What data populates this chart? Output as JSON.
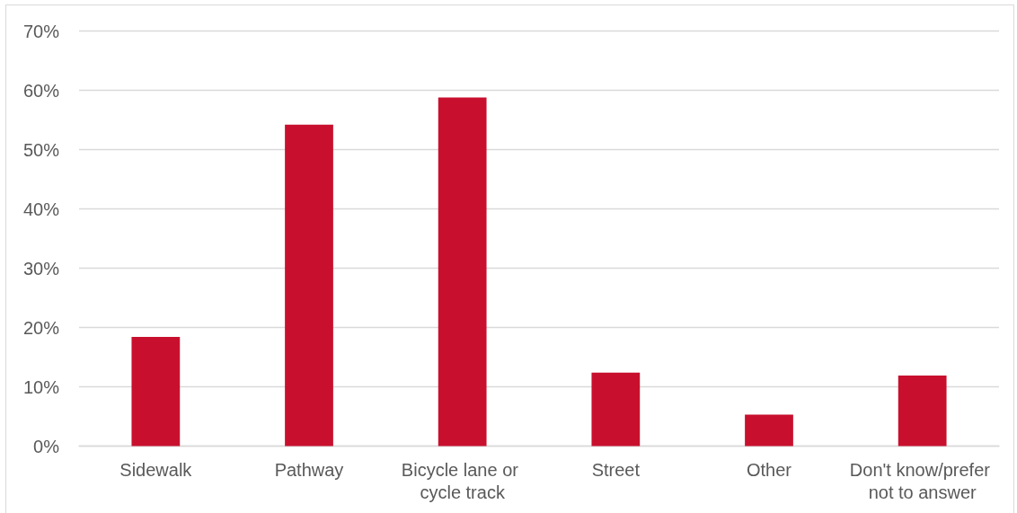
{
  "chart_data": {
    "type": "bar",
    "categories": [
      "Sidewalk",
      "Pathway",
      "Bicycle lane or cycle track",
      "Street",
      "Other",
      "Don't know/prefer not to answer"
    ],
    "values": [
      18.4,
      54.2,
      58.8,
      12.4,
      5.3,
      11.9
    ],
    "color": "#c8102e",
    "ylim": [
      0,
      70
    ],
    "yticks": [
      {
        "value": 0,
        "label": "0%"
      },
      {
        "value": 10,
        "label": "10%"
      },
      {
        "value": 20,
        "label": "20%"
      },
      {
        "value": 30,
        "label": "30%"
      },
      {
        "value": 40,
        "label": "40%"
      },
      {
        "value": 50,
        "label": "50%"
      },
      {
        "value": 60,
        "label": "60%"
      },
      {
        "value": 70,
        "label": "70%"
      }
    ],
    "grid": "y"
  }
}
